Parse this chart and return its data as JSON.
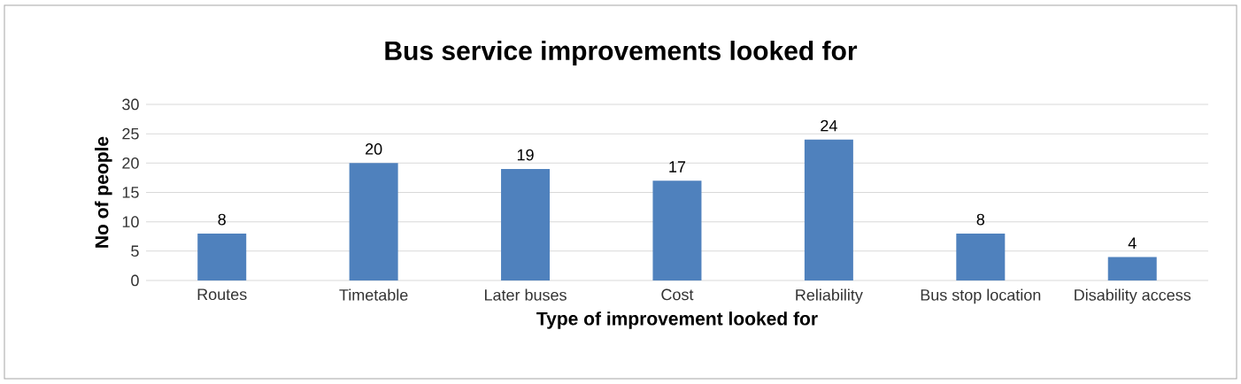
{
  "chart_data": {
    "type": "bar",
    "title": "Bus service improvements looked for",
    "xlabel": "Type of improvement looked for",
    "ylabel": "No of people",
    "categories": [
      "Routes",
      "Timetable",
      "Later buses",
      "Cost",
      "Reliability",
      "Bus stop location",
      "Disability access"
    ],
    "values": [
      8,
      20,
      19,
      17,
      24,
      8,
      4
    ],
    "color": "#4f81bd",
    "ylim": [
      0,
      30
    ],
    "yticks": [
      0,
      5,
      10,
      15,
      20,
      25,
      30
    ],
    "grid": "y",
    "data_labels": true
  }
}
